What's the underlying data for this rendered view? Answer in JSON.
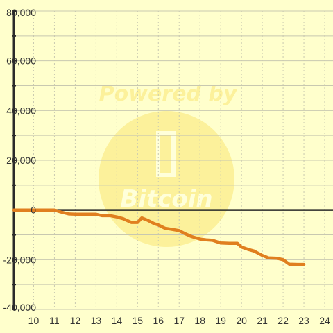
{
  "chart_data": {
    "type": "line",
    "title": "",
    "xlabel": "",
    "ylabel": "",
    "xlim": [
      9.05,
      24.4
    ],
    "ylim": [
      -40000,
      80000
    ],
    "x_ticks": [
      10,
      11,
      12,
      13,
      14,
      15,
      16,
      17,
      18,
      19,
      20,
      21,
      22,
      23,
      24
    ],
    "x_tick_labels": [
      "10",
      "11",
      "12",
      "13",
      "14",
      "15",
      "16",
      "17",
      "18",
      "19",
      "20",
      "21",
      "22",
      "23",
      "24"
    ],
    "y_ticks": [
      -40000,
      -20000,
      0,
      20000,
      40000,
      60000,
      80000
    ],
    "y_tick_labels": [
      "-40,000",
      "-20,000",
      "0",
      "20,000",
      "40,000",
      "60,000",
      "80,000"
    ],
    "y_minor_step": 10000,
    "grid": true,
    "legend": "none",
    "series": [
      {
        "color": "#e07f1f",
        "x": [
          9.05,
          10.0,
          10.5,
          11.0,
          11.3,
          11.7,
          12.0,
          12.5,
          13.0,
          13.3,
          13.7,
          14.0,
          14.3,
          14.7,
          15.0,
          15.2,
          15.5,
          15.8,
          16.0,
          16.3,
          16.6,
          17.0,
          17.3,
          17.6,
          18.0,
          18.3,
          18.6,
          18.9,
          19.0,
          19.4,
          19.8,
          20.0,
          20.3,
          20.6,
          21.0,
          21.3,
          21.7,
          22.0,
          22.3,
          22.7,
          23.0
        ],
        "y": [
          0,
          0,
          0,
          0,
          -800,
          -1600,
          -1700,
          -1700,
          -1700,
          -2300,
          -2300,
          -2800,
          -3500,
          -5000,
          -5000,
          -3200,
          -4200,
          -5500,
          -6000,
          -7300,
          -7700,
          -8300,
          -9600,
          -10700,
          -11700,
          -12000,
          -12200,
          -13000,
          -13300,
          -13400,
          -13400,
          -14900,
          -15800,
          -16500,
          -18300,
          -19300,
          -19400,
          -20000,
          -21800,
          -21900,
          -21900
        ]
      }
    ]
  },
  "watermark": {
    "line1": "Powered by",
    "line2": "Bitcoin",
    "icon": "bitcoin-icon"
  },
  "colors": {
    "background": "#ffffcc",
    "grid": "#c8c8b0",
    "axis": "#2a2a2a",
    "zero_line": "#2a2a2a",
    "series": "#e07f1f",
    "watermark": "#f5d020"
  }
}
